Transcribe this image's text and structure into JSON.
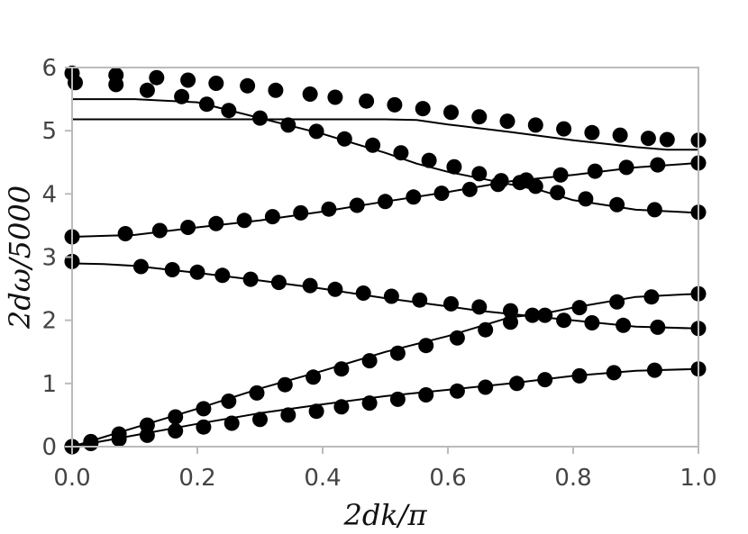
{
  "chart_data": {
    "type": "scatter",
    "title": "",
    "xlabel": "2dk/π",
    "ylabel": "2dω/5000",
    "xlim": [
      0,
      1
    ],
    "ylim": [
      0,
      6
    ],
    "x_ticks": [
      "0.0",
      "0.2",
      "0.4",
      "0.6",
      "0.8",
      "1.0"
    ],
    "y_ticks": [
      "0",
      "1",
      "2",
      "3",
      "4",
      "5",
      "6"
    ],
    "grid": false,
    "legend": "none",
    "colors": {
      "line": "#000000",
      "marker": "#000000",
      "frame": "#bbbbbb",
      "tick_text": "#444444"
    },
    "lines": [
      {
        "x": [
          0,
          0.1,
          0.2,
          0.3,
          0.4,
          0.5,
          0.6,
          0.7,
          0.8,
          0.9,
          1.0
        ],
        "y": [
          0,
          0.18,
          0.36,
          0.53,
          0.67,
          0.8,
          0.9,
          1.0,
          1.12,
          1.2,
          1.23
        ]
      },
      {
        "x": [
          0,
          0.1,
          0.2,
          0.3,
          0.4,
          0.5,
          0.6,
          0.65,
          0.7,
          0.75,
          0.8,
          0.9,
          1.0
        ],
        "y": [
          0,
          0.3,
          0.6,
          0.92,
          1.2,
          1.5,
          1.75,
          1.9,
          2.05,
          2.1,
          2.2,
          2.37,
          2.42
        ]
      },
      {
        "x": [
          0,
          0.05,
          0.1,
          0.2,
          0.3,
          0.4,
          0.5,
          0.6,
          0.65,
          0.7,
          0.75,
          0.8,
          0.9,
          1.0
        ],
        "y": [
          2.9,
          2.89,
          2.86,
          2.75,
          2.63,
          2.5,
          2.35,
          2.22,
          2.15,
          2.1,
          2.05,
          2.0,
          1.9,
          1.87
        ]
      },
      {
        "x": [
          0,
          0.1,
          0.2,
          0.3,
          0.4,
          0.5,
          0.6,
          0.7,
          0.8,
          0.9,
          1.0
        ],
        "y": [
          3.32,
          3.35,
          3.47,
          3.58,
          3.72,
          3.88,
          4.03,
          4.2,
          4.3,
          4.42,
          4.49
        ]
      },
      {
        "x": [
          0,
          0.1,
          0.2,
          0.3,
          0.4,
          0.5,
          0.55,
          0.6,
          0.65,
          0.7,
          0.75,
          0.8,
          0.9,
          1.0
        ],
        "y": [
          5.5,
          5.5,
          5.45,
          5.2,
          4.95,
          4.65,
          4.48,
          4.35,
          4.25,
          4.15,
          4.05,
          3.9,
          3.75,
          3.7
        ]
      },
      {
        "x": [
          0,
          0.1,
          0.2,
          0.3,
          0.4,
          0.5,
          0.55,
          0.6,
          0.7,
          0.8,
          0.9,
          0.95,
          1.0
        ],
        "y": [
          5.18,
          5.18,
          5.18,
          5.18,
          5.18,
          5.18,
          5.17,
          5.1,
          4.98,
          4.85,
          4.74,
          4.7,
          4.7
        ]
      }
    ],
    "points": [
      {
        "x": [
          0.0,
          0.03,
          0.075,
          0.12,
          0.165,
          0.21,
          0.255,
          0.3,
          0.345,
          0.39,
          0.43,
          0.475,
          0.52,
          0.565,
          0.615,
          0.66,
          0.71,
          0.755,
          0.81,
          0.865,
          0.93,
          1.0
        ],
        "y": [
          0.0,
          0.05,
          0.12,
          0.18,
          0.25,
          0.31,
          0.37,
          0.43,
          0.5,
          0.56,
          0.63,
          0.69,
          0.75,
          0.82,
          0.88,
          0.94,
          1.0,
          1.06,
          1.12,
          1.17,
          1.21,
          1.23
        ]
      },
      {
        "x": [
          0.0,
          0.03,
          0.075,
          0.12,
          0.165,
          0.21,
          0.25,
          0.295,
          0.34,
          0.385,
          0.43,
          0.475,
          0.52,
          0.565,
          0.615,
          0.66,
          0.7,
          0.755,
          0.81,
          0.87,
          0.925,
          1.0
        ],
        "y": [
          0.0,
          0.08,
          0.2,
          0.34,
          0.47,
          0.6,
          0.72,
          0.85,
          0.98,
          1.1,
          1.23,
          1.36,
          1.48,
          1.6,
          1.72,
          1.85,
          1.97,
          2.08,
          2.2,
          2.29,
          2.37,
          2.42
        ]
      },
      {
        "x": [
          0.0,
          0.11,
          0.16,
          0.2,
          0.24,
          0.285,
          0.33,
          0.38,
          0.42,
          0.465,
          0.51,
          0.555,
          0.605,
          0.65,
          0.7,
          0.735,
          0.785,
          0.83,
          0.88,
          0.935,
          1.0
        ],
        "y": [
          2.93,
          2.85,
          2.8,
          2.76,
          2.71,
          2.65,
          2.6,
          2.55,
          2.49,
          2.43,
          2.38,
          2.32,
          2.26,
          2.21,
          2.15,
          2.08,
          2.0,
          1.96,
          1.92,
          1.89,
          1.87
        ]
      },
      {
        "x": [
          0.0,
          0.085,
          0.14,
          0.185,
          0.23,
          0.275,
          0.32,
          0.365,
          0.41,
          0.455,
          0.5,
          0.545,
          0.59,
          0.635,
          0.68,
          0.725,
          0.78,
          0.835,
          0.885,
          0.935,
          1.0
        ],
        "y": [
          3.32,
          3.37,
          3.42,
          3.47,
          3.53,
          3.58,
          3.64,
          3.7,
          3.76,
          3.82,
          3.88,
          3.95,
          4.01,
          4.07,
          4.15,
          4.22,
          4.3,
          4.36,
          4.42,
          4.46,
          4.49
        ]
      },
      {
        "x": [
          0.005,
          0.12,
          0.175,
          0.215,
          0.25,
          0.3,
          0.345,
          0.39,
          0.435,
          0.48,
          0.525,
          0.57,
          0.61,
          0.65,
          0.685,
          0.715,
          0.74,
          0.775,
          0.82,
          0.87,
          0.93,
          1.0
        ],
        "y": [
          5.76,
          5.64,
          5.54,
          5.42,
          5.32,
          5.2,
          5.09,
          4.99,
          4.87,
          4.77,
          4.65,
          4.53,
          4.43,
          4.32,
          4.21,
          4.18,
          4.12,
          4.02,
          3.92,
          3.83,
          3.75,
          3.71
        ]
      },
      {
        "x": [
          0.0,
          0.07,
          0.135,
          0.185,
          0.23,
          0.28,
          0.325,
          0.38,
          0.42,
          0.47,
          0.515,
          0.56,
          0.605,
          0.65,
          0.695,
          0.74,
          0.785,
          0.83,
          0.875,
          0.92,
          0.95,
          1.0
        ],
        "y": [
          5.91,
          5.88,
          5.84,
          5.8,
          5.75,
          5.71,
          5.64,
          5.58,
          5.53,
          5.47,
          5.41,
          5.35,
          5.29,
          5.22,
          5.15,
          5.09,
          5.03,
          4.97,
          4.93,
          4.88,
          4.86,
          4.85
        ]
      },
      {
        "x": [
          0.07
        ],
        "y": [
          5.73
        ]
      }
    ]
  }
}
